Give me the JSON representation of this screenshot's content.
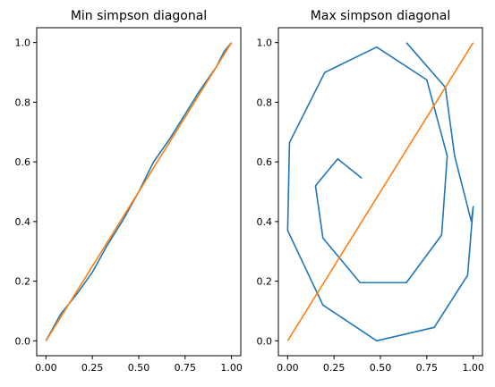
{
  "chart_data": [
    {
      "type": "line",
      "title": "Min simpson diagonal",
      "xlim": [
        -0.05,
        1.05
      ],
      "ylim": [
        -0.05,
        1.05
      ],
      "xticks": [
        0.0,
        0.25,
        0.5,
        0.75,
        1.0
      ],
      "xtick_labels": [
        "0.00",
        "0.25",
        "0.50",
        "0.75",
        "1.00"
      ],
      "yticks": [
        0.0,
        0.2,
        0.4,
        0.6,
        0.8,
        1.0
      ],
      "ytick_labels": [
        "0.0",
        "0.2",
        "0.4",
        "0.6",
        "0.8",
        "1.0"
      ],
      "grid": false,
      "series": [
        {
          "color": "#1f77b4",
          "x": [
            0.0,
            0.08,
            0.17,
            0.25,
            0.33,
            0.42,
            0.5,
            0.58,
            0.67,
            0.75,
            0.83,
            0.92,
            0.96,
            1.0
          ],
          "y": [
            0.0,
            0.09,
            0.16,
            0.23,
            0.32,
            0.41,
            0.5,
            0.6,
            0.68,
            0.76,
            0.84,
            0.92,
            0.97,
            1.0
          ]
        },
        {
          "color": "#ff7f0e",
          "x": [
            0.0,
            1.0
          ],
          "y": [
            0.0,
            1.0
          ]
        }
      ]
    },
    {
      "type": "line",
      "title": "Max simpson diagonal",
      "xlim": [
        -0.05,
        1.05
      ],
      "ylim": [
        -0.05,
        1.05
      ],
      "xticks": [
        0.0,
        0.25,
        0.5,
        0.75,
        1.0
      ],
      "xtick_labels": [
        "0.00",
        "0.25",
        "0.50",
        "0.75",
        "1.00"
      ],
      "yticks": [
        0.0,
        0.2,
        0.4,
        0.6,
        0.8,
        1.0
      ],
      "ytick_labels": [
        "0.0",
        "0.2",
        "0.4",
        "0.6",
        "0.8",
        "1.0"
      ],
      "grid": false,
      "series": [
        {
          "color": "#1f77b4",
          "x": [
            0.64,
            0.85,
            0.9,
            0.99,
            1.0,
            0.97,
            0.79,
            0.48,
            0.19,
            0.0,
            0.01,
            0.2,
            0.48,
            0.75,
            0.86,
            0.83,
            0.64,
            0.39,
            0.19,
            0.15,
            0.27,
            0.4
          ],
          "y": [
            1.0,
            0.85,
            0.62,
            0.4,
            0.45,
            0.22,
            0.045,
            0.0,
            0.12,
            0.37,
            0.665,
            0.9,
            0.985,
            0.875,
            0.62,
            0.355,
            0.195,
            0.195,
            0.345,
            0.52,
            0.61,
            0.545
          ]
        },
        {
          "color": "#ff7f0e",
          "x": [
            0.0,
            1.0
          ],
          "y": [
            0.0,
            1.0
          ]
        }
      ]
    }
  ]
}
